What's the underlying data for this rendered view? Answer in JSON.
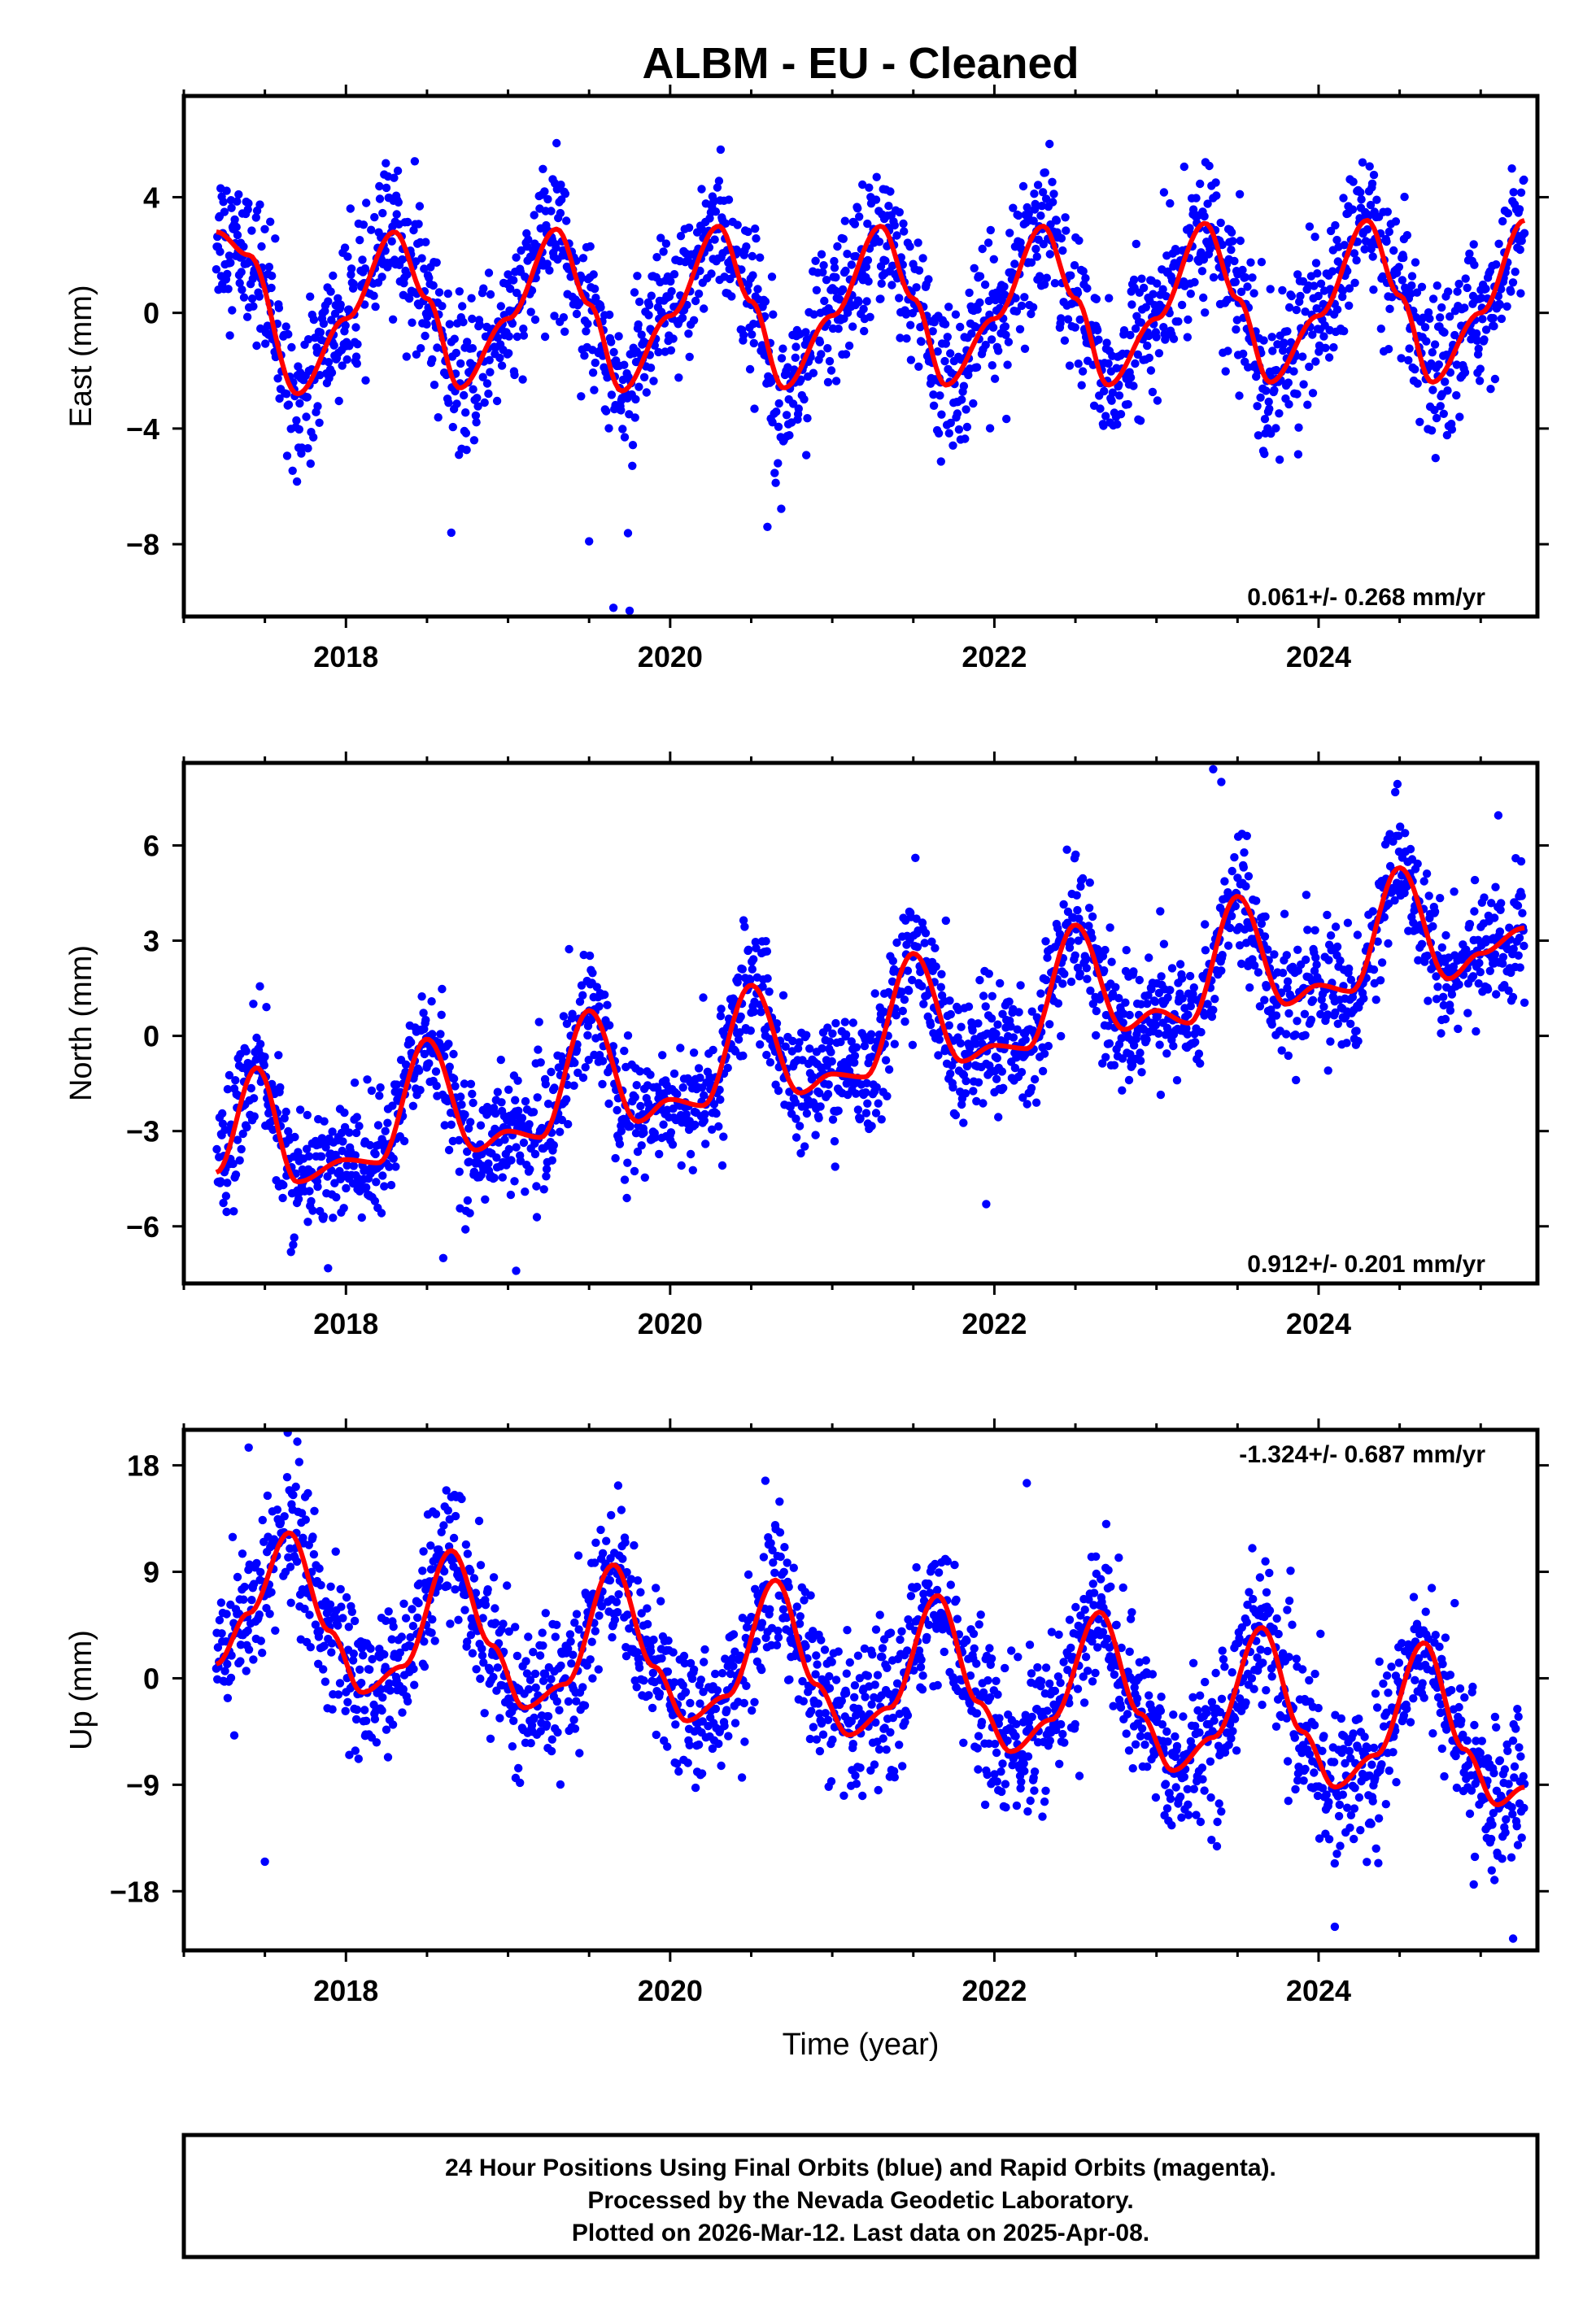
{
  "title": "ALBM  - EU - Cleaned",
  "colors": {
    "points": "#0000ff",
    "fit": "#ff0000",
    "frame": "#000000"
  },
  "footer": {
    "line1": "24 Hour Positions Using Final Orbits (blue) and Rapid Orbits (magenta).",
    "line2": "Processed by the Nevada Geodetic Laboratory.",
    "line3": "Plotted on 2026-Mar-12. Last data on 2025-Apr-08."
  },
  "chart_data": [
    {
      "type": "scatter",
      "title": "East",
      "xlabel": "",
      "ylabel": "East (mm)",
      "xlim": [
        2017.0,
        2025.35
      ],
      "ylim": [
        -10.5,
        7.5
      ],
      "yticks": [
        4,
        0,
        -4,
        -8
      ],
      "ytick_labels": [
        "4",
        "0",
        "−4",
        "−8"
      ],
      "xticks": [
        2018,
        2020,
        2022,
        2024
      ],
      "xtick_labels": [
        "2018",
        "2020",
        "2022",
        "2024"
      ],
      "rate_label": "0.061+/- 0.268 mm/yr",
      "rate_position": "bottom-right",
      "data_start": 2017.2,
      "data_end": 2025.27,
      "fit_series": {
        "name": "seasonal fit",
        "x": [
          2017.2,
          2017.4,
          2017.7,
          2018.0,
          2018.3,
          2018.5,
          2018.7,
          2019.0,
          2019.3,
          2019.5,
          2019.7,
          2020.0,
          2020.3,
          2020.5,
          2020.7,
          2021.0,
          2021.3,
          2021.5,
          2021.7,
          2022.0,
          2022.3,
          2022.5,
          2022.7,
          2023.0,
          2023.3,
          2023.5,
          2023.7,
          2024.0,
          2024.3,
          2024.5,
          2024.7,
          2025.0,
          2025.27
        ],
        "y": [
          2.8,
          2.0,
          -2.8,
          -0.2,
          2.8,
          0.5,
          -2.6,
          -0.2,
          2.9,
          0.3,
          -2.7,
          -0.1,
          3.0,
          0.4,
          -2.6,
          -0.1,
          3.0,
          0.5,
          -2.5,
          -0.2,
          3.0,
          0.5,
          -2.5,
          -0.2,
          3.1,
          0.5,
          -2.4,
          -0.1,
          3.2,
          0.6,
          -2.4,
          0.0,
          3.2
        ]
      },
      "scatter_series": {
        "name": "daily positions",
        "n_points": 2400,
        "noise_sd": 1.25,
        "outliers": [
          [
            2019.65,
            -10.2
          ],
          [
            2019.75,
            -10.3
          ],
          [
            2019.5,
            -7.9
          ],
          [
            2018.65,
            -7.6
          ],
          [
            2020.6,
            -7.4
          ]
        ]
      }
    },
    {
      "type": "scatter",
      "title": "North",
      "xlabel": "",
      "ylabel": "North (mm)",
      "xlim": [
        2017.0,
        2025.35
      ],
      "ylim": [
        -7.8,
        8.6
      ],
      "yticks": [
        6,
        3,
        0,
        -3,
        -6
      ],
      "ytick_labels": [
        "6",
        "3",
        "0",
        "−3",
        "−6"
      ],
      "xticks": [
        2018,
        2020,
        2022,
        2024
      ],
      "xtick_labels": [
        "2018",
        "2020",
        "2022",
        "2024"
      ],
      "rate_label": "0.912+/- 0.201 mm/yr",
      "rate_position": "bottom-right",
      "data_start": 2017.2,
      "data_end": 2025.27,
      "fit_series": {
        "name": "seasonal fit",
        "x": [
          2017.2,
          2017.45,
          2017.7,
          2018.0,
          2018.2,
          2018.5,
          2018.8,
          2019.0,
          2019.2,
          2019.5,
          2019.8,
          2020.0,
          2020.2,
          2020.5,
          2020.8,
          2021.0,
          2021.2,
          2021.5,
          2021.8,
          2022.0,
          2022.2,
          2022.5,
          2022.8,
          2023.0,
          2023.2,
          2023.5,
          2023.8,
          2024.0,
          2024.2,
          2024.5,
          2024.8,
          2025.0,
          2025.27
        ],
        "y": [
          -4.3,
          -1.0,
          -4.6,
          -3.9,
          -4.0,
          -0.1,
          -3.6,
          -3.0,
          -3.2,
          0.8,
          -2.7,
          -2.0,
          -2.2,
          1.6,
          -1.8,
          -1.2,
          -1.3,
          2.6,
          -0.8,
          -0.3,
          -0.4,
          3.5,
          0.2,
          0.8,
          0.4,
          4.4,
          1.0,
          1.6,
          1.4,
          5.3,
          1.8,
          2.6,
          3.4
        ]
      },
      "scatter_series": {
        "name": "daily positions",
        "n_points": 2400,
        "noise_sd": 0.95,
        "outliers": [
          [
            2023.35,
            8.4
          ],
          [
            2023.4,
            8.0
          ],
          [
            2019.05,
            -7.4
          ],
          [
            2021.95,
            -5.3
          ],
          [
            2018.6,
            -7.0
          ]
        ]
      }
    },
    {
      "type": "scatter",
      "title": "Up",
      "xlabel": "Time (year)",
      "ylabel": "Up (mm)",
      "xlim": [
        2017.0,
        2025.35
      ],
      "ylim": [
        -23,
        21
      ],
      "yticks": [
        18,
        9,
        0,
        -9,
        -18
      ],
      "ytick_labels": [
        "18",
        "9",
        "0",
        "−9",
        "−18"
      ],
      "xticks": [
        2018,
        2020,
        2022,
        2024
      ],
      "xtick_labels": [
        "2018",
        "2020",
        "2022",
        "2024"
      ],
      "rate_label": "-1.324+/- 0.687 mm/yr",
      "rate_position": "top-right",
      "data_start": 2017.2,
      "data_end": 2025.27,
      "fit_series": {
        "name": "seasonal fit",
        "x": [
          2017.2,
          2017.4,
          2017.65,
          2017.9,
          2018.1,
          2018.35,
          2018.65,
          2018.9,
          2019.1,
          2019.35,
          2019.65,
          2019.9,
          2020.1,
          2020.35,
          2020.65,
          2020.9,
          2021.1,
          2021.35,
          2021.65,
          2021.9,
          2022.1,
          2022.35,
          2022.65,
          2022.9,
          2023.1,
          2023.35,
          2023.65,
          2023.9,
          2024.1,
          2024.35,
          2024.65,
          2024.9,
          2025.1,
          2025.27
        ],
        "y": [
          1.2,
          5.5,
          12.3,
          4.0,
          -1.2,
          1.0,
          10.8,
          2.8,
          -2.5,
          -0.5,
          9.6,
          1.0,
          -3.6,
          -1.5,
          8.3,
          -0.5,
          -4.8,
          -2.5,
          7.0,
          -2.0,
          -6.2,
          -3.5,
          5.6,
          -3.0,
          -7.8,
          -5.0,
          4.3,
          -4.5,
          -9.2,
          -6.5,
          3.0,
          -6.0,
          -10.7,
          -9.2
        ]
      },
      "scatter_series": {
        "name": "daily positions",
        "n_points": 2400,
        "noise_sd": 3.1,
        "outliers": [
          [
            2017.5,
            -15.5
          ],
          [
            2017.4,
            19.5
          ],
          [
            2017.7,
            20.0
          ],
          [
            2024.1,
            -21.0
          ],
          [
            2025.2,
            -22.0
          ],
          [
            2022.2,
            16.5
          ]
        ]
      }
    }
  ]
}
